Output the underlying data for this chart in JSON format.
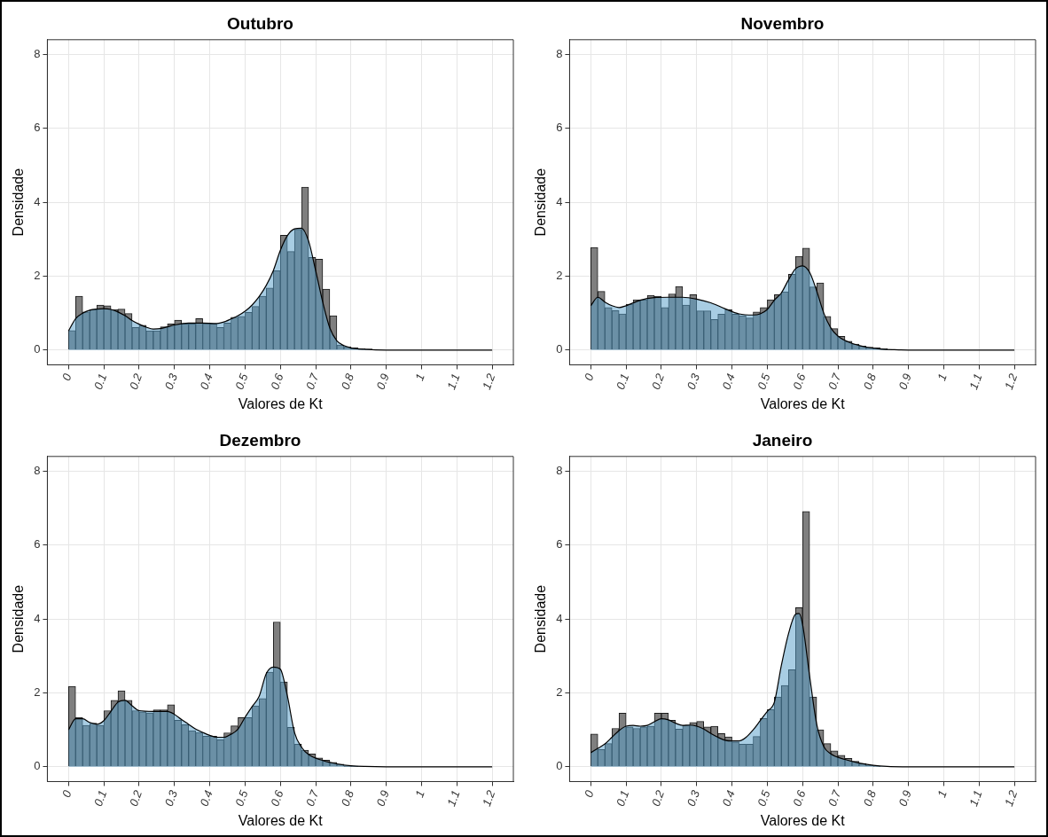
{
  "chart_data": [
    {
      "type": "histogram",
      "title": "Outubro",
      "xlabel": "Valores de Kt",
      "ylabel": "Densidade",
      "color": "#7f7f7f",
      "bins": [
        0,
        0.02,
        0.04,
        0.06,
        0.08,
        0.1,
        0.12,
        0.14,
        0.16,
        0.18,
        0.2,
        0.22,
        0.24,
        0.26,
        0.28,
        0.3,
        0.32,
        0.34,
        0.36,
        0.38,
        0.4,
        0.42,
        0.44,
        0.46,
        0.48,
        0.5,
        0.52,
        0.54,
        0.56,
        0.58,
        0.6,
        0.62,
        0.64,
        0.66,
        0.68,
        0.7,
        0.72,
        0.74,
        0.76,
        0.78,
        0.8,
        0.82,
        0.84,
        0.86,
        0.88
      ],
      "values": [
        0.53,
        1.46,
        1.03,
        1.1,
        1.22,
        1.2,
        1.1,
        1.11,
        0.99,
        0.61,
        0.67,
        0.52,
        0.52,
        0.63,
        0.71,
        0.81,
        0.71,
        0.71,
        0.85,
        0.72,
        0.71,
        0.61,
        0.73,
        0.89,
        0.91,
        1.02,
        1.18,
        1.46,
        1.68,
        2.15,
        3.11,
        2.67,
        3.27,
        4.41,
        2.51,
        2.46,
        1.65,
        0.93,
        0.14,
        0.09,
        0.06,
        0.04,
        0.03,
        null
      ],
      "series": [
        {
          "type": "area",
          "color": "#58a0ca",
          "x": [
            0,
            0.02,
            0.04,
            0.06,
            0.08,
            0.1,
            0.12,
            0.14,
            0.16,
            0.18,
            0.2,
            0.22,
            0.24,
            0.26,
            0.28,
            0.3,
            0.34,
            0.38,
            0.42,
            0.44,
            0.46,
            0.48,
            0.5,
            0.52,
            0.54,
            0.56,
            0.58,
            0.6,
            0.62,
            0.64,
            0.66,
            0.68,
            0.7,
            0.72,
            0.74,
            0.76,
            0.78,
            0.8,
            0.84,
            0.9,
            1.2
          ],
          "values": [
            0.52,
            0.85,
            1.0,
            1.08,
            1.11,
            1.12,
            1.1,
            1.03,
            0.93,
            0.8,
            0.7,
            0.62,
            0.57,
            0.58,
            0.63,
            0.68,
            0.73,
            0.73,
            0.72,
            0.76,
            0.84,
            0.93,
            1.05,
            1.22,
            1.45,
            1.75,
            2.15,
            2.7,
            3.1,
            3.28,
            3.3,
            2.95,
            2.15,
            1.3,
            0.6,
            0.25,
            0.12,
            0.06,
            0.02,
            0,
            0
          ]
        }
      ],
      "xlim": [
        -0.06,
        1.26
      ],
      "xticks": [
        0,
        0.1,
        0.2,
        0.3,
        0.4,
        0.5,
        0.6,
        0.7,
        0.8,
        0.9,
        1,
        1.1,
        1.2
      ],
      "ylim": [
        -0.4,
        8.4
      ],
      "yticks": [
        0,
        2,
        4,
        6,
        8
      ],
      "grid": true
    },
    {
      "type": "histogram",
      "title": "Novembro",
      "xlabel": "Valores de Kt",
      "ylabel": "Densidade",
      "color": "#7f7f7f",
      "bins": [
        0,
        0.02,
        0.04,
        0.06,
        0.08,
        0.1,
        0.12,
        0.14,
        0.16,
        0.18,
        0.2,
        0.22,
        0.24,
        0.26,
        0.28,
        0.3,
        0.32,
        0.34,
        0.36,
        0.38,
        0.4,
        0.42,
        0.44,
        0.46,
        0.48,
        0.5,
        0.52,
        0.54,
        0.56,
        0.58,
        0.6,
        0.62,
        0.64,
        0.66,
        0.68,
        0.7,
        0.72,
        0.74,
        0.76,
        0.78,
        0.8,
        0.82,
        0.84,
        0.86
      ],
      "values": [
        2.78,
        1.59,
        1.15,
        1.07,
        0.98,
        1.24,
        1.36,
        1.36,
        1.48,
        1.46,
        1.15,
        1.52,
        1.72,
        1.22,
        1.5,
        1.06,
        1.06,
        0.83,
        0.97,
        1.1,
        0.97,
        0.93,
        0.87,
        1.03,
        1.15,
        1.36,
        1.5,
        1.58,
        2.05,
        2.54,
        2.76,
        1.71,
        1.82,
        0.91,
        0.58,
        0.37,
        0.24,
        0.16,
        0.11,
        0.08,
        0.06,
        0.04,
        null
      ],
      "series": [
        {
          "type": "area",
          "color": "#58a0ca",
          "x": [
            0,
            0.02,
            0.04,
            0.06,
            0.08,
            0.1,
            0.14,
            0.18,
            0.22,
            0.26,
            0.3,
            0.34,
            0.38,
            0.42,
            0.46,
            0.48,
            0.5,
            0.52,
            0.54,
            0.56,
            0.58,
            0.6,
            0.62,
            0.64,
            0.66,
            0.68,
            0.7,
            0.74,
            0.78,
            0.82,
            0.86,
            0.9,
            1.2
          ],
          "values": [
            1.2,
            1.43,
            1.3,
            1.2,
            1.15,
            1.2,
            1.35,
            1.42,
            1.43,
            1.43,
            1.38,
            1.28,
            1.12,
            0.98,
            0.95,
            0.98,
            1.1,
            1.35,
            1.55,
            1.9,
            2.2,
            2.28,
            2.1,
            1.6,
            1.0,
            0.6,
            0.38,
            0.18,
            0.08,
            0.03,
            0.01,
            0,
            0
          ]
        }
      ],
      "xlim": [
        -0.06,
        1.26
      ],
      "xticks": [
        0,
        0.1,
        0.2,
        0.3,
        0.4,
        0.5,
        0.6,
        0.7,
        0.8,
        0.9,
        1,
        1.1,
        1.2
      ],
      "ylim": [
        -0.4,
        8.4
      ],
      "yticks": [
        0,
        2,
        4,
        6,
        8
      ],
      "grid": true
    },
    {
      "type": "histogram",
      "title": "Dezembro",
      "xlabel": "Valores de Kt",
      "ylabel": "Densidade",
      "color": "#7f7f7f",
      "bins": [
        0,
        0.02,
        0.04,
        0.06,
        0.08,
        0.1,
        0.12,
        0.14,
        0.16,
        0.18,
        0.2,
        0.22,
        0.24,
        0.26,
        0.28,
        0.3,
        0.32,
        0.34,
        0.36,
        0.38,
        0.4,
        0.42,
        0.44,
        0.46,
        0.48,
        0.5,
        0.52,
        0.54,
        0.56,
        0.58,
        0.6,
        0.62,
        0.64,
        0.66,
        0.68,
        0.7,
        0.72,
        0.74,
        0.76,
        0.78,
        0.8,
        0.82
      ],
      "values": [
        2.18,
        1.34,
        1.12,
        1.18,
        1.12,
        1.52,
        1.8,
        2.06,
        1.8,
        1.52,
        1.49,
        1.46,
        1.54,
        1.54,
        1.68,
        1.26,
        1.14,
        0.98,
        0.93,
        0.83,
        0.83,
        0.73,
        0.92,
        1.11,
        1.33,
        1.33,
        1.65,
        1.85,
        2.56,
        3.92,
        2.3,
        1.07,
        0.61,
        0.45,
        0.35,
        0.24,
        0.18,
        0.12,
        0.07,
        0.03,
        0.02
      ],
      "series": [
        {
          "type": "area",
          "color": "#58a0ca",
          "x": [
            0,
            0.02,
            0.04,
            0.06,
            0.08,
            0.1,
            0.12,
            0.14,
            0.16,
            0.18,
            0.2,
            0.24,
            0.28,
            0.3,
            0.32,
            0.34,
            0.36,
            0.38,
            0.4,
            0.42,
            0.44,
            0.46,
            0.48,
            0.5,
            0.52,
            0.54,
            0.56,
            0.58,
            0.6,
            0.62,
            0.64,
            0.66,
            0.68,
            0.72,
            0.76,
            0.8,
            0.84,
            0.9,
            1.2
          ],
          "values": [
            1.0,
            1.3,
            1.3,
            1.2,
            1.15,
            1.25,
            1.5,
            1.75,
            1.8,
            1.65,
            1.52,
            1.5,
            1.5,
            1.42,
            1.28,
            1.15,
            1.02,
            0.93,
            0.85,
            0.8,
            0.8,
            0.88,
            1.02,
            1.34,
            1.63,
            1.91,
            2.52,
            2.7,
            2.64,
            1.91,
            0.93,
            0.53,
            0.33,
            0.17,
            0.08,
            0.03,
            0.01,
            0,
            0
          ]
        }
      ],
      "xlim": [
        -0.06,
        1.26
      ],
      "xticks": [
        0,
        0.1,
        0.2,
        0.3,
        0.4,
        0.5,
        0.6,
        0.7,
        0.8,
        0.9,
        1,
        1.1,
        1.2
      ],
      "ylim": [
        -0.4,
        8.4
      ],
      "yticks": [
        0,
        2,
        4,
        6,
        8
      ],
      "grid": true
    },
    {
      "type": "histogram",
      "title": "Janeiro",
      "xlabel": "Valores de Kt",
      "ylabel": "Densidade",
      "color": "#7f7f7f",
      "bins": [
        0,
        0.02,
        0.04,
        0.06,
        0.08,
        0.1,
        0.12,
        0.14,
        0.16,
        0.18,
        0.2,
        0.22,
        0.24,
        0.26,
        0.28,
        0.3,
        0.32,
        0.34,
        0.36,
        0.38,
        0.4,
        0.42,
        0.44,
        0.46,
        0.48,
        0.5,
        0.52,
        0.54,
        0.56,
        0.58,
        0.6,
        0.62,
        0.64,
        0.66,
        0.68,
        0.7,
        0.72,
        0.74,
        0.76,
        0.78,
        0.8,
        0.82
      ],
      "values": [
        0.89,
        0.47,
        0.63,
        1.04,
        1.45,
        1.08,
        1.04,
        1.08,
        1.1,
        1.45,
        1.45,
        1.26,
        1.02,
        1.12,
        1.2,
        1.23,
        1.08,
        1.1,
        0.9,
        0.81,
        0.67,
        0.61,
        0.61,
        0.82,
        1.31,
        1.55,
        1.89,
        2.2,
        2.63,
        4.31,
        6.91,
        1.89,
        1.0,
        0.63,
        0.43,
        0.31,
        0.23,
        0.15,
        0.09,
        0.04,
        0.02
      ],
      "series": [
        {
          "type": "area",
          "color": "#58a0ca",
          "x": [
            0,
            0.02,
            0.04,
            0.06,
            0.08,
            0.1,
            0.12,
            0.14,
            0.16,
            0.18,
            0.2,
            0.22,
            0.24,
            0.26,
            0.28,
            0.3,
            0.32,
            0.34,
            0.36,
            0.38,
            0.4,
            0.42,
            0.44,
            0.46,
            0.48,
            0.5,
            0.52,
            0.54,
            0.56,
            0.58,
            0.59,
            0.6,
            0.62,
            0.64,
            0.66,
            0.68,
            0.72,
            0.76,
            0.8,
            0.84,
            0.9,
            1.2
          ],
          "values": [
            0.38,
            0.5,
            0.62,
            0.8,
            0.98,
            1.1,
            1.12,
            1.1,
            1.12,
            1.22,
            1.3,
            1.27,
            1.18,
            1.12,
            1.13,
            1.1,
            1.02,
            0.9,
            0.8,
            0.72,
            0.7,
            0.7,
            0.8,
            1.0,
            1.25,
            1.5,
            1.75,
            2.75,
            3.6,
            4.13,
            4.15,
            3.85,
            2.45,
            1.15,
            0.55,
            0.35,
            0.2,
            0.1,
            0.04,
            0.01,
            0,
            0
          ]
        }
      ],
      "xlim": [
        -0.06,
        1.26
      ],
      "xticks": [
        0,
        0.1,
        0.2,
        0.3,
        0.4,
        0.5,
        0.6,
        0.7,
        0.8,
        0.9,
        1,
        1.1,
        1.2
      ],
      "ylim": [
        -0.4,
        8.4
      ],
      "yticks": [
        0,
        2,
        4,
        6,
        8
      ],
      "grid": true
    }
  ]
}
